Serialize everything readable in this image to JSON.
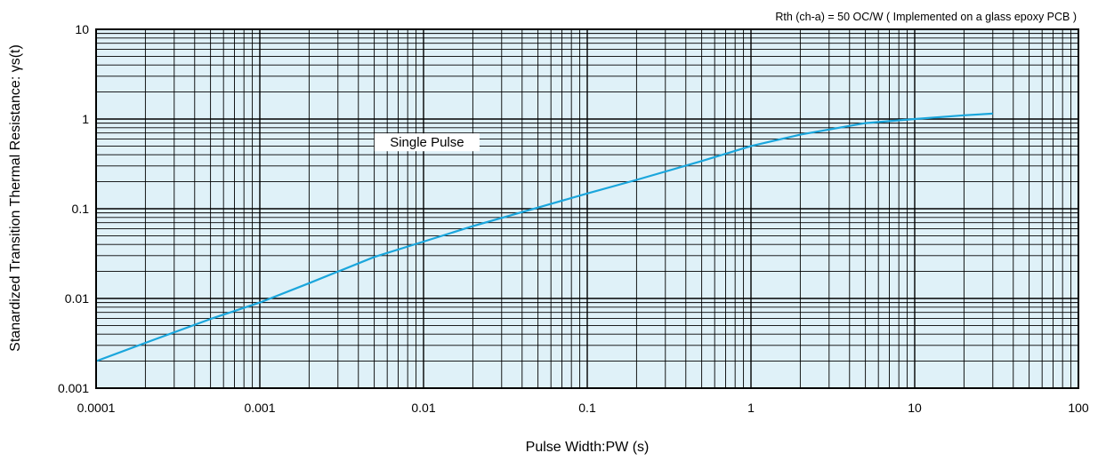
{
  "chart_data": {
    "type": "line",
    "title": "",
    "note": "Rth (ch-a) = 50 OC/W ( Implemented on a glass epoxy PCB )",
    "xlabel": "Pulse Width:PW  (s)",
    "ylabel": "Stanardized Transition Thermal Resistance: γs(t)",
    "x_scale": "log",
    "y_scale": "log",
    "xlim": [
      0.0001,
      100
    ],
    "ylim": [
      0.001,
      10
    ],
    "x_ticks": [
      "0.0001",
      "0.001",
      "0.01",
      "0.1",
      "1",
      "10",
      "100"
    ],
    "y_ticks": [
      "0.001",
      "0.01",
      "0.1",
      "1",
      "10"
    ],
    "grid": true,
    "plot_background": "#dff1f8",
    "line_color": "#1aa6dc",
    "series": [
      {
        "name": "Single Pulse",
        "x": [
          0.0001,
          0.0002,
          0.0005,
          0.001,
          0.002,
          0.005,
          0.01,
          0.02,
          0.05,
          0.1,
          0.2,
          0.5,
          1,
          2,
          5,
          10,
          20,
          30
        ],
        "y": [
          0.002,
          0.0032,
          0.0059,
          0.009,
          0.0148,
          0.029,
          0.043,
          0.064,
          0.103,
          0.148,
          0.21,
          0.34,
          0.5,
          0.67,
          0.9,
          1.0,
          1.1,
          1.15
        ]
      }
    ]
  }
}
